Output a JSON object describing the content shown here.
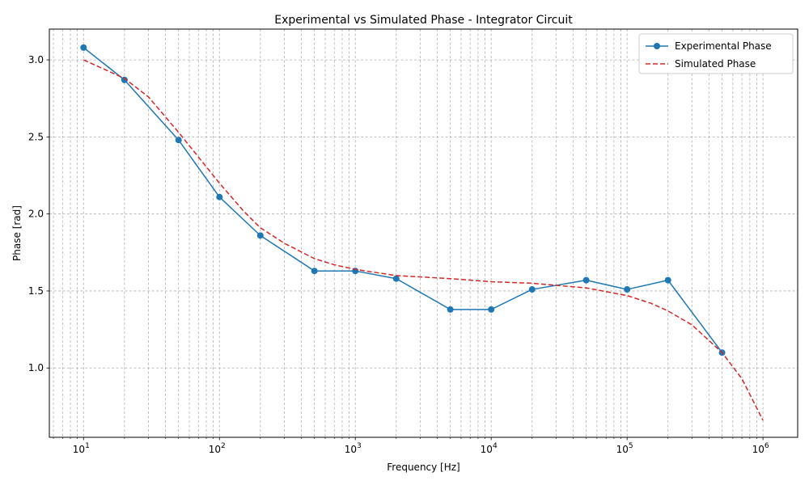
{
  "chart_data": {
    "type": "line",
    "title": "Experimental vs Simulated Phase - Integrator Circuit",
    "xlabel": "Frequency [Hz]",
    "ylabel": "Phase [rad]",
    "xscale": "log",
    "xlim": [
      5.6,
      1800000
    ],
    "ylim": [
      0.55,
      3.2
    ],
    "x_ticks": [
      {
        "value": 10,
        "base": "10",
        "exp": "1"
      },
      {
        "value": 100,
        "base": "10",
        "exp": "2"
      },
      {
        "value": 1000,
        "base": "10",
        "exp": "3"
      },
      {
        "value": 10000,
        "base": "10",
        "exp": "4"
      },
      {
        "value": 100000,
        "base": "10",
        "exp": "5"
      },
      {
        "value": 1000000,
        "base": "10",
        "exp": "6"
      }
    ],
    "y_ticks": [
      "1.0",
      "1.5",
      "2.0",
      "2.5",
      "3.0"
    ],
    "grid": true,
    "grid_minor": true,
    "legend_position": "top-right",
    "series": [
      {
        "name": "Experimental Phase",
        "color": "#1f77b4",
        "style": "solid-with-markers",
        "x": [
          10,
          20,
          50,
          100,
          200,
          500,
          1000,
          2000,
          5000,
          10000,
          20000,
          50000,
          100000,
          200000,
          500000
        ],
        "y": [
          3.08,
          2.87,
          2.48,
          2.11,
          1.86,
          1.63,
          1.63,
          1.58,
          1.38,
          1.38,
          1.51,
          1.57,
          1.51,
          1.57,
          1.1
        ]
      },
      {
        "name": "Simulated Phase",
        "color": "#d62728",
        "style": "dashed",
        "x": [
          10,
          20,
          30,
          50,
          70,
          100,
          150,
          200,
          300,
          500,
          700,
          1000,
          2000,
          5000,
          10000,
          20000,
          50000,
          100000,
          150000,
          200000,
          300000,
          500000,
          700000,
          1000000
        ],
        "y": [
          3.0,
          2.88,
          2.76,
          2.53,
          2.37,
          2.2,
          2.02,
          1.91,
          1.81,
          1.71,
          1.67,
          1.64,
          1.6,
          1.58,
          1.56,
          1.55,
          1.52,
          1.47,
          1.42,
          1.37,
          1.28,
          1.1,
          0.93,
          0.66
        ]
      }
    ]
  }
}
